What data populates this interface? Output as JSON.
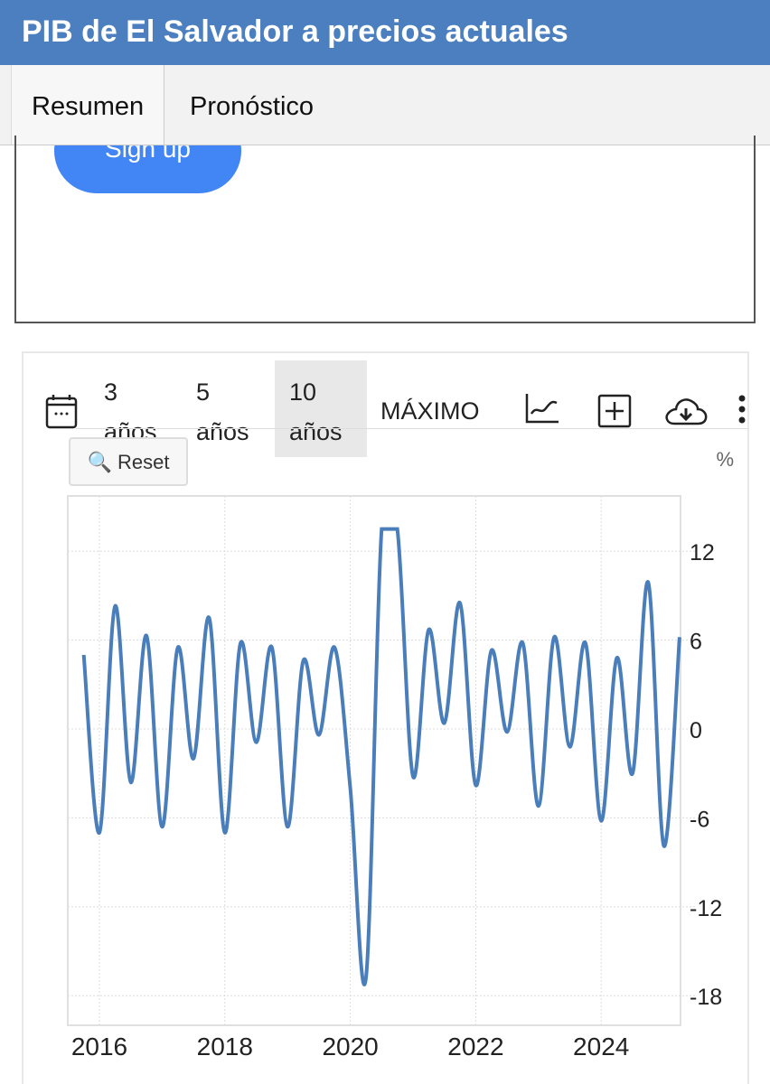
{
  "header": {
    "title": "PIB de El Salvador a precios actuales"
  },
  "tabs": [
    {
      "label": "Resumen",
      "active": true
    },
    {
      "label": "Pronóstico",
      "active": false
    }
  ],
  "promo": {
    "signup_label": "Sign up"
  },
  "toolbar": {
    "ranges": [
      {
        "line1": "3",
        "line2": "años"
      },
      {
        "line1": "5",
        "line2": "años"
      },
      {
        "line1": "10",
        "line2": "años",
        "active": true
      }
    ],
    "max_label": "MÁXIMO",
    "reset_label": "Reset",
    "icons": [
      "calendar-icon",
      "line-chart-icon",
      "plus-box-icon",
      "cloud-download-icon",
      "more-vertical-icon"
    ]
  },
  "chart_data": {
    "type": "line",
    "unit_label": "%",
    "color": "#4a7ebb",
    "x_start": "2015-Q4",
    "x_step": "quarter",
    "x_ticks": [
      "2016",
      "2018",
      "2020",
      "2022",
      "2024"
    ],
    "y_ticks": [
      "12",
      "6",
      "0",
      "-6",
      "-12",
      "-18"
    ],
    "ylim": [
      -19.5,
      14.5
    ],
    "grid": true,
    "values": [
      5,
      -7,
      8.3,
      -3.6,
      6.3,
      -6.6,
      5.5,
      -2,
      7.5,
      -7,
      5.8,
      -0.9,
      5.5,
      -6.6,
      4.6,
      -0.4,
      5.5,
      -4,
      -16.8,
      13.5,
      13.5,
      -3.2,
      6.7,
      0.4,
      8.5,
      -3.8,
      5.3,
      -0.2,
      5.8,
      -5.2,
      6.2,
      -1.2,
      5.8,
      -6.2,
      4.8,
      -3,
      9.9,
      -7.9,
      6.2
    ]
  }
}
